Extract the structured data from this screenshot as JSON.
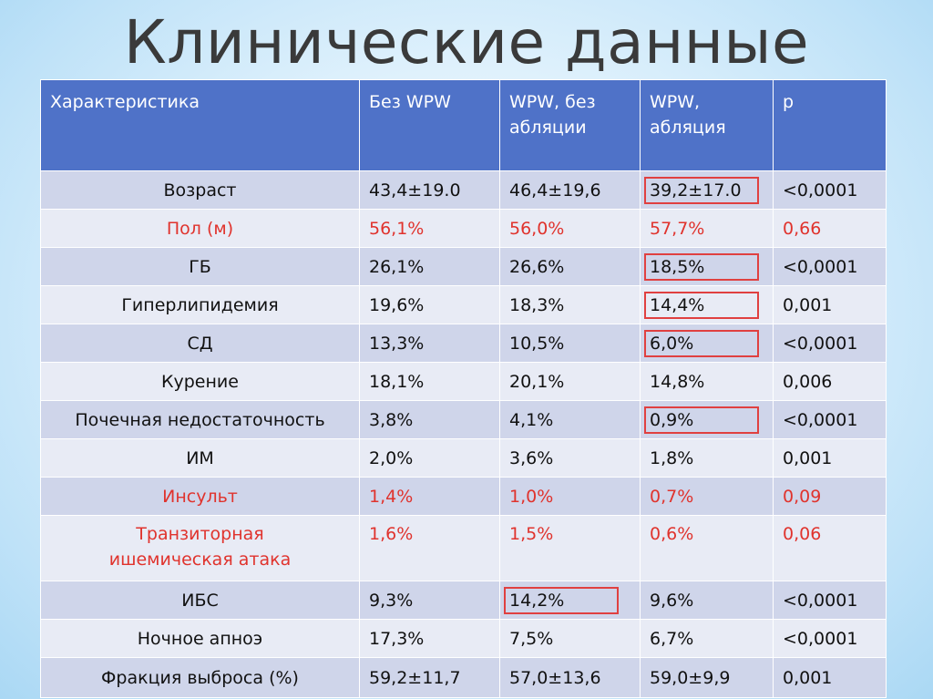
{
  "title": "Клинические данные",
  "table": {
    "headers": [
      "Характеристика",
      "Без WPW",
      "WPW, без абляции",
      "WPW, абляция",
      "p"
    ],
    "rows": [
      {
        "name": "Возраст",
        "no_wpw": "43,4±19.0",
        "wpw_no_abl": "46,4±19,6",
        "wpw_abl": "39,2±17.0",
        "p": "<0,0001"
      },
      {
        "name": "Пол (м)",
        "no_wpw": "56,1%",
        "wpw_no_abl": "56,0%",
        "wpw_abl": "57,7%",
        "p": "0,66"
      },
      {
        "name": "ГБ",
        "no_wpw": "26,1%",
        "wpw_no_abl": "26,6%",
        "wpw_abl": "18,5%",
        "p": "<0,0001"
      },
      {
        "name": "Гиперлипидемия",
        "no_wpw": "19,6%",
        "wpw_no_abl": "18,3%",
        "wpw_abl": "14,4%",
        "p": "0,001"
      },
      {
        "name": "СД",
        "no_wpw": "13,3%",
        "wpw_no_abl": "10,5%",
        "wpw_abl": "6,0%",
        "p": "<0,0001"
      },
      {
        "name": "Курение",
        "no_wpw": "18,1%",
        "wpw_no_abl": "20,1%",
        "wpw_abl": "14,8%",
        "p": "0,006"
      },
      {
        "name": "Почечная недостаточность",
        "no_wpw": "3,8%",
        "wpw_no_abl": "4,1%",
        "wpw_abl": "0,9%",
        "p": "<0,0001"
      },
      {
        "name": "ИМ",
        "no_wpw": "2,0%",
        "wpw_no_abl": "3,6%",
        "wpw_abl": "1,8%",
        "p": "0,001"
      },
      {
        "name": "Инсульт",
        "no_wpw": "1,4%",
        "wpw_no_abl": "1,0%",
        "wpw_abl": "0,7%",
        "p": "0,09"
      },
      {
        "name_line1": "Транзиторная",
        "name_line2": "ишемическая атака",
        "no_wpw": "1,6%",
        "wpw_no_abl": "1,5%",
        "wpw_abl": "0,6%",
        "p": "0,06"
      },
      {
        "name": "ИБС",
        "no_wpw": "9,3%",
        "wpw_no_abl": "14,2%",
        "wpw_abl": "9,6%",
        "p": "<0,0001"
      },
      {
        "name": "Ночное апноэ",
        "no_wpw": "17,3%",
        "wpw_no_abl": "7,5%",
        "wpw_abl": "6,7%",
        "p": "<0,0001"
      },
      {
        "name": "Фракция выброса (%)",
        "no_wpw": "59,2±11,7",
        "wpw_no_abl": "57,0±13,6",
        "wpw_abl": "59,0±9,9",
        "p": "0,001"
      }
    ]
  },
  "colors": {
    "header_bg": "#4f72c8",
    "row_odd_bg": "#cfd5ea",
    "row_even_bg": "#e8ebf5",
    "highlight_text": "#e0332d",
    "highlight_box": "#e04040"
  }
}
